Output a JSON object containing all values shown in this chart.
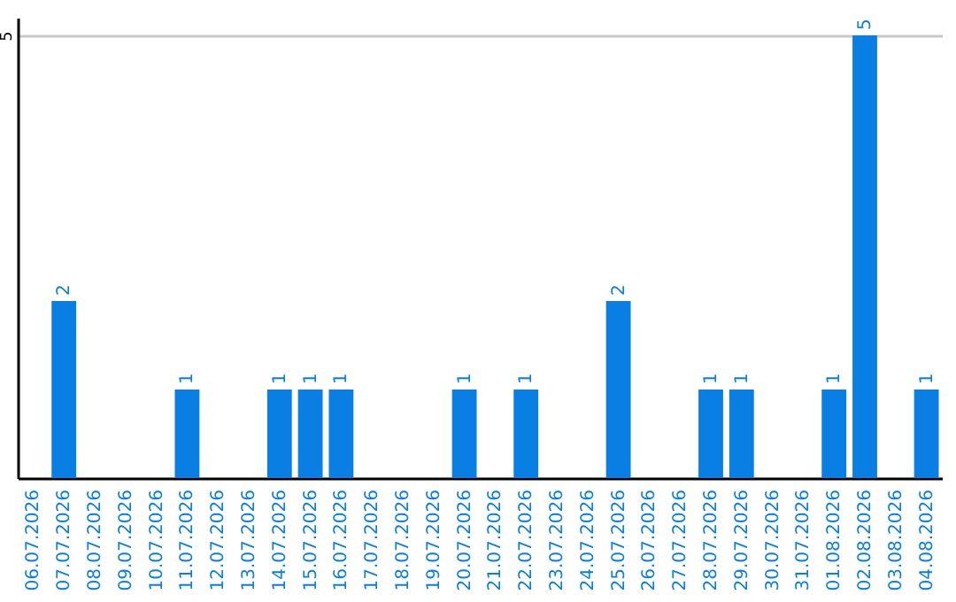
{
  "chart_data": {
    "type": "bar",
    "categories": [
      "06.07.2026",
      "07.07.2026",
      "08.07.2026",
      "09.07.2026",
      "10.07.2026",
      "11.07.2026",
      "12.07.2026",
      "13.07.2026",
      "14.07.2026",
      "15.07.2026",
      "16.07.2026",
      "17.07.2026",
      "18.07.2026",
      "19.07.2026",
      "20.07.2026",
      "21.07.2026",
      "22.07.2026",
      "23.07.2026",
      "24.07.2026",
      "25.07.2026",
      "26.07.2026",
      "27.07.2026",
      "28.07.2026",
      "29.07.2026",
      "30.07.2026",
      "31.07.2026",
      "01.08.2026",
      "02.08.2026",
      "03.08.2026",
      "04.08.2026"
    ],
    "values": [
      0,
      2,
      0,
      0,
      0,
      1,
      0,
      0,
      1,
      1,
      1,
      0,
      0,
      0,
      1,
      0,
      1,
      0,
      0,
      2,
      0,
      0,
      1,
      1,
      0,
      0,
      1,
      5,
      0,
      1
    ],
    "value_labels": [
      null,
      "2",
      null,
      null,
      null,
      "1",
      null,
      null,
      "1",
      "1",
      "1",
      null,
      null,
      null,
      "1",
      null,
      "1",
      null,
      null,
      "2",
      null,
      null,
      "1",
      "1",
      null,
      null,
      "1",
      "5",
      null,
      "1"
    ],
    "color": "#0a7fe3",
    "ylim": [
      0,
      5.2
    ],
    "yticks": [
      5
    ],
    "grid": "y"
  }
}
